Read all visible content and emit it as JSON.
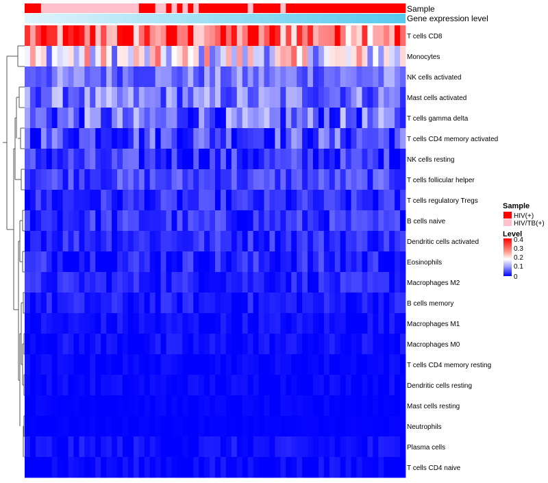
{
  "chart_data": {
    "type": "heatmap",
    "title": "",
    "annotations": [
      {
        "name": "Sample",
        "values": [
          "HIV(+)",
          "HIV(+)",
          "HIV(+)",
          "HIV/TB(+)",
          "HIV/TB(+)",
          "HIV/TB(+)",
          "HIV/TB(+)",
          "HIV/TB(+)",
          "HIV/TB(+)",
          "HIV/TB(+)",
          "HIV/TB(+)",
          "HIV/TB(+)",
          "HIV/TB(+)",
          "HIV/TB(+)",
          "HIV/TB(+)",
          "HIV/TB(+)",
          "HIV/TB(+)",
          "HIV/TB(+)",
          "HIV/TB(+)",
          "HIV/TB(+)",
          "HIV/TB(+)",
          "HIV(+)",
          "HIV(+)",
          "HIV(+)",
          "HIV/TB(+)",
          "HIV/TB(+)",
          "HIV(+)",
          "HIV/TB(+)",
          "HIV(+)",
          "HIV/TB(+)",
          "HIV(+)",
          "HIV/TB(+)",
          "HIV(+)",
          "HIV(+)",
          "HIV(+)",
          "HIV(+)",
          "HIV(+)",
          "HIV(+)",
          "HIV(+)",
          "HIV(+)",
          "HIV(+)",
          "HIV/TB(+)",
          "HIV(+)",
          "HIV(+)",
          "HIV(+)",
          "HIV(+)",
          "HIV(+)",
          "HIV/TB(+)",
          "HIV(+)",
          "HIV(+)",
          "HIV(+)",
          "HIV(+)",
          "HIV(+)",
          "HIV(+)",
          "HIV(+)",
          "HIV(+)",
          "HIV(+)",
          "HIV(+)",
          "HIV(+)",
          "HIV(+)",
          "HIV(+)",
          "HIV(+)",
          "HIV(+)",
          "HIV(+)",
          "HIV(+)",
          "HIV(+)",
          "HIV(+)",
          "HIV(+)",
          "HIV(+)",
          "HIV(+)"
        ]
      },
      {
        "name": "Gene expression level",
        "values": []
      }
    ],
    "rows": [
      "T cells CD8",
      "Monocytes",
      "NK cells activated",
      "Mast cells activated",
      "T cells gamma delta",
      "T cells CD4 memory activated",
      "NK cells resting",
      "T cells follicular helper",
      "T cells regulatory  Tregs",
      "B cells naive",
      "Dendritic cells activated",
      "Eosinophils",
      "Macrophages M2",
      "B cells memory",
      "Macrophages M1",
      "Macrophages M0",
      "T cells CD4 memory resting",
      "Dendritic cells resting",
      "Mast cells resting",
      "Neutrophils",
      "Plasma cells",
      "T cells CD4 naive"
    ],
    "row_mean_level": [
      0.33,
      0.2,
      0.1,
      0.1,
      0.08,
      0.07,
      0.04,
      0.06,
      0.03,
      0.04,
      0.04,
      0.03,
      0.03,
      0.02,
      0.01,
      0.01,
      0.005,
      0.005,
      0.002,
      0.001,
      0.01,
      0.008
    ],
    "row_level_spread": [
      0.07,
      0.08,
      0.04,
      0.05,
      0.06,
      0.05,
      0.04,
      0.03,
      0.03,
      0.03,
      0.025,
      0.03,
      0.02,
      0.02,
      0.015,
      0.015,
      0.008,
      0.01,
      0.005,
      0.003,
      0.015,
      0.012
    ],
    "columns": 70,
    "legend": {
      "sample_title": "Sample",
      "sample_entries": [
        {
          "label": "HIV(+)",
          "color": "#ff0000"
        },
        {
          "label": "HIV/TB(+)",
          "color": "#ffc0cb"
        }
      ],
      "level_title": "Level",
      "level_ticks": [
        "0.4",
        "0.3",
        "0.2",
        "0.1",
        "0"
      ],
      "level_range": [
        0,
        0.4
      ]
    },
    "colors": {
      "low": "#0000ff",
      "mid": "#ffffff",
      "high": "#ff0000",
      "annot_light": "#e0f4fb",
      "annot_dark": "#56c9ee"
    },
    "dendrogram": "hierarchical clustering of rows (left)"
  }
}
